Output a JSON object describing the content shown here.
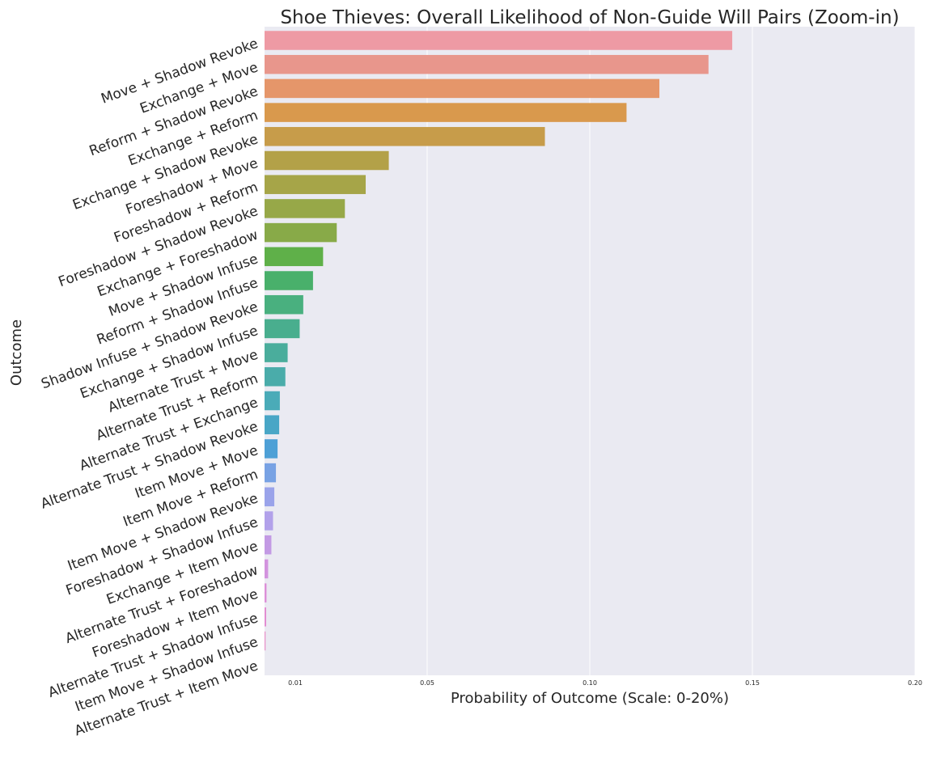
{
  "chart_data": {
    "type": "bar",
    "orientation": "horizontal",
    "title": "Shoe Thieves: Overall Likelihood of Non-Guide Will Pairs (Zoom-in)",
    "xlabel": "Probability of Outcome (Scale: 0-20%)",
    "ylabel": "Outcome",
    "xlim": [
      0.0,
      0.2
    ],
    "xticks": [
      0.01,
      0.05,
      0.1,
      0.15,
      0.2
    ],
    "xtick_labels": [
      "0.01",
      "0.05",
      "0.10",
      "0.15",
      "0.20"
    ],
    "grid": true,
    "legend": "none",
    "categories": [
      "Move + Shadow Revoke",
      "Exchange + Move",
      "Reform + Shadow Revoke",
      "Exchange + Reform",
      "Exchange + Shadow Revoke",
      "Foreshadow + Move",
      "Foreshadow + Reform",
      "Foreshadow + Shadow Revoke",
      "Exchange + Foreshadow",
      "Move + Shadow Infuse",
      "Reform + Shadow Infuse",
      "Shadow Infuse + Shadow Revoke",
      "Exchange + Shadow Infuse",
      "Alternate Trust + Move",
      "Alternate Trust + Reform",
      "Alternate Trust + Exchange",
      "Alternate Trust + Shadow Revoke",
      "Item Move + Move",
      "Item Move + Reform",
      "Item Move + Shadow Revoke",
      "Foreshadow + Shadow Infuse",
      "Exchange + Item Move",
      "Alternate Trust + Foreshadow",
      "Foreshadow + Item Move",
      "Alternate Trust + Shadow Infuse",
      "Item Move + Shadow Infuse",
      "Alternate Trust + Item Move"
    ],
    "values": [
      0.1438,
      0.1365,
      0.1214,
      0.1113,
      0.0862,
      0.0382,
      0.0311,
      0.0247,
      0.0222,
      0.018,
      0.0149,
      0.0119,
      0.0108,
      0.0071,
      0.0064,
      0.0047,
      0.0045,
      0.004,
      0.0035,
      0.003,
      0.0026,
      0.0021,
      0.0011,
      0.0006,
      0.0005,
      0.0003,
      0.0
    ],
    "colors": [
      "#ee9aa4",
      "#e8968c",
      "#e5966a",
      "#d9994d",
      "#c79c4a",
      "#b3a148",
      "#a6a548",
      "#97a848",
      "#88aa48",
      "#5fb049",
      "#49b06b",
      "#49b07f",
      "#49ae8e",
      "#4aad9c",
      "#4aacaa",
      "#4aabb8",
      "#49a6c6",
      "#4ea0d6",
      "#78a2e4",
      "#9aa3ea",
      "#b2a1ea",
      "#c39ae4",
      "#d393de",
      "#dc8fd8",
      "#e28ed2",
      "#e78ec8",
      "#e98fc0"
    ]
  }
}
